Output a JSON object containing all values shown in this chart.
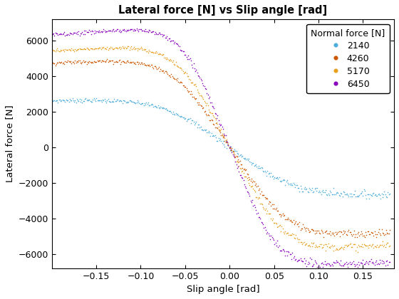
{
  "title": "Lateral force [N] vs Slip angle [rad]",
  "xlabel": "Slip angle [rad]",
  "ylabel": "Lateral force [N]",
  "legend_title": "Normal force [N]",
  "series": [
    {
      "label": "2140",
      "color": "#4daedb",
      "D": 2650,
      "C": 1.35,
      "B": 10.0,
      "E": -1.2
    },
    {
      "label": "4260",
      "color": "#cc5500",
      "D": 4850,
      "C": 1.35,
      "B": 11.5,
      "E": -1.3
    },
    {
      "label": "5170",
      "color": "#e8a020",
      "D": 5600,
      "C": 1.35,
      "B": 12.5,
      "E": -1.3
    },
    {
      "label": "6450",
      "color": "#8800bb",
      "D": 6600,
      "C": 1.35,
      "B": 14.0,
      "E": -1.3
    }
  ],
  "xlim": [
    -0.2,
    0.185
  ],
  "ylim": [
    -6800,
    7200
  ],
  "xticks": [
    -0.15,
    -0.1,
    -0.05,
    0,
    0.05,
    0.1,
    0.15
  ],
  "yticks": [
    -6000,
    -4000,
    -2000,
    0,
    2000,
    4000,
    6000
  ],
  "figsize": [
    5.6,
    4.2
  ],
  "dpi": 100,
  "noise_std": 70,
  "n_points": 380
}
